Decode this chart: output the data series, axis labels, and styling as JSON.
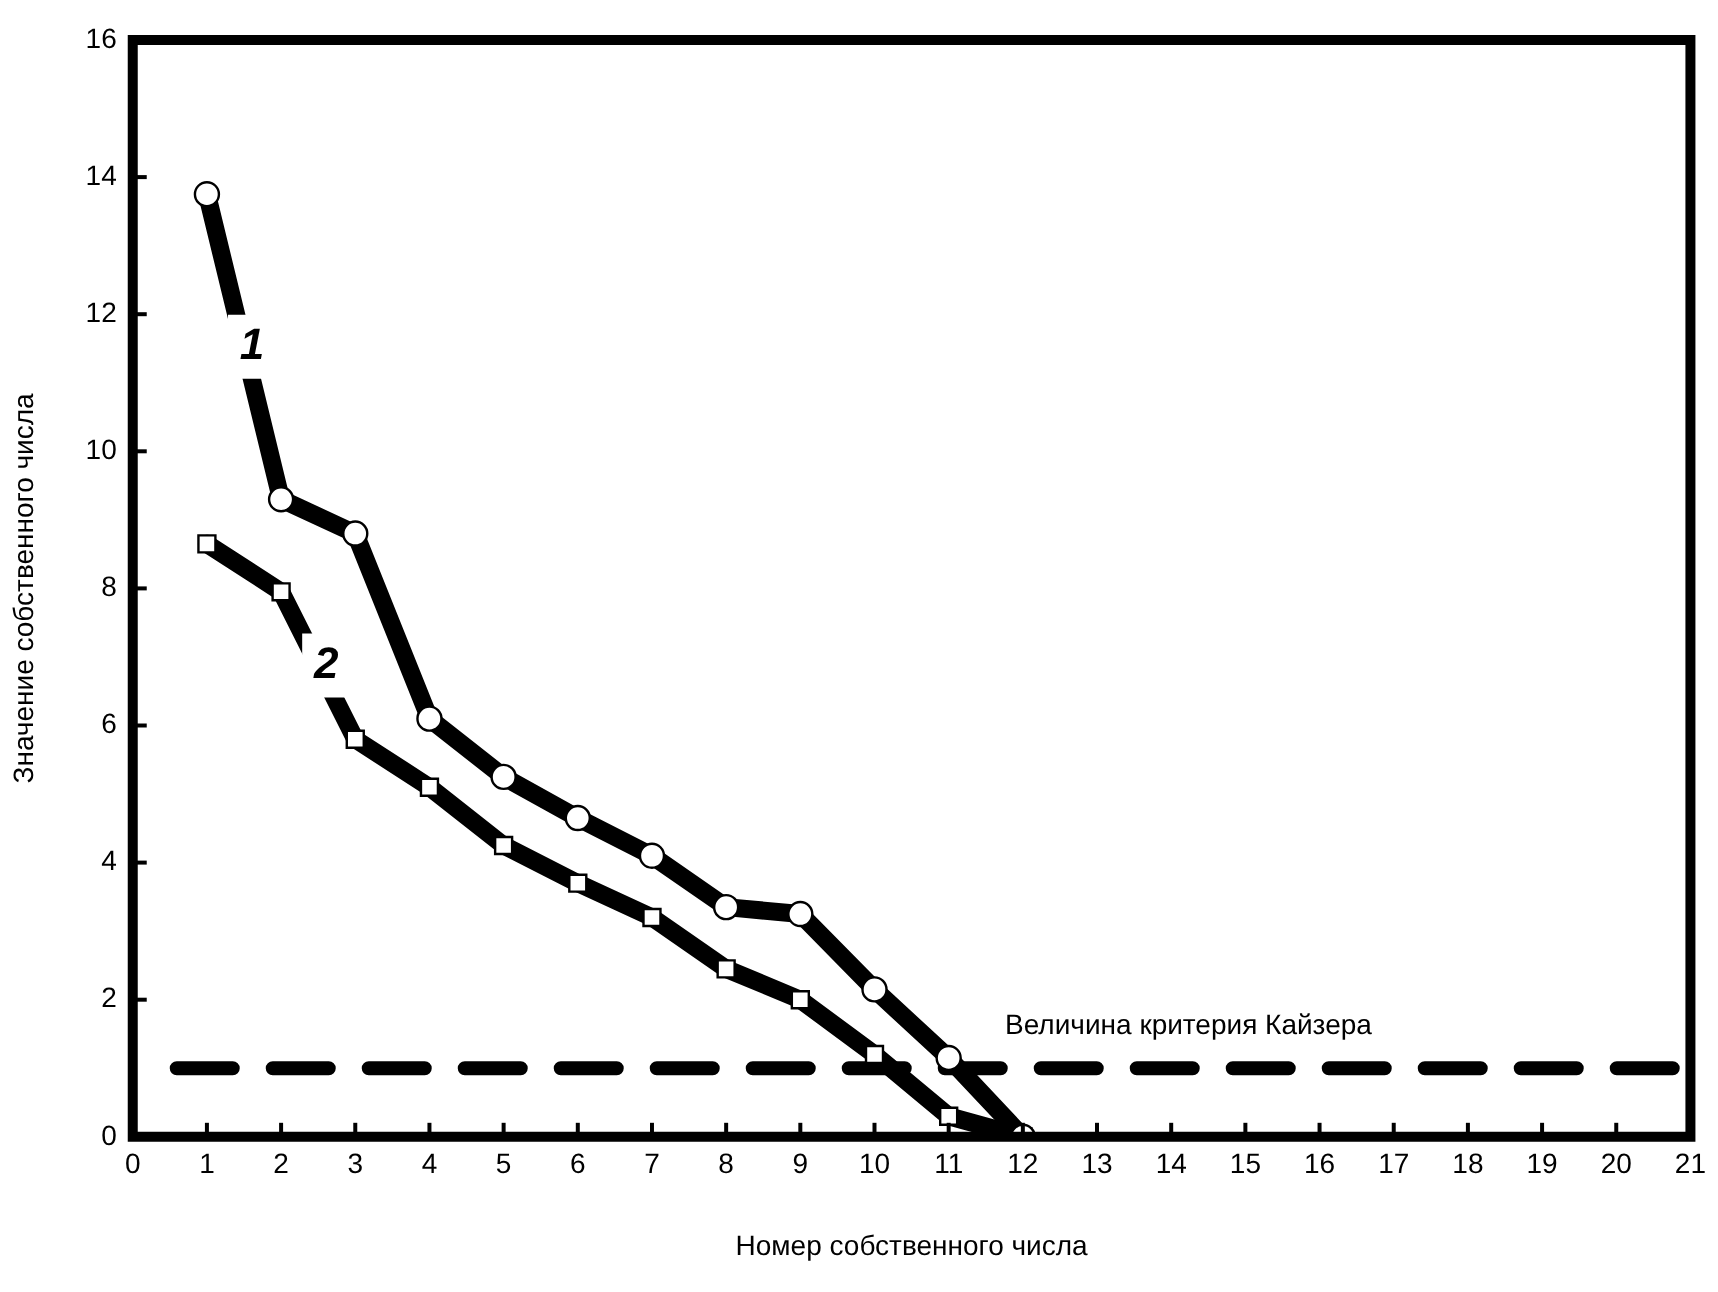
{
  "chart_data": {
    "type": "line",
    "xlabel": "Номер собственного числа",
    "ylabel": "Значение собственного числа",
    "x": [
      1,
      2,
      3,
      4,
      5,
      6,
      7,
      8,
      9,
      10,
      11,
      12
    ],
    "xlim": [
      0,
      21
    ],
    "xticks": [
      0,
      1,
      2,
      3,
      4,
      5,
      6,
      7,
      8,
      9,
      10,
      11,
      12,
      13,
      14,
      15,
      16,
      17,
      18,
      19,
      20,
      21
    ],
    "ylim": [
      0,
      16
    ],
    "yticks": [
      0,
      2,
      4,
      6,
      8,
      10,
      12,
      14,
      16
    ],
    "series": [
      {
        "name": "1",
        "color": "#000000",
        "marker": "circle",
        "values": [
          13.75,
          9.3,
          8.8,
          6.1,
          5.25,
          4.65,
          4.1,
          3.35,
          3.25,
          2.15,
          1.15,
          0
        ]
      },
      {
        "name": "2",
        "color": "#000000",
        "marker": "square",
        "values": [
          8.65,
          7.95,
          5.8,
          5.1,
          4.25,
          3.7,
          3.2,
          2.45,
          2.0,
          1.2,
          0.3,
          0
        ]
      }
    ],
    "ref_lines": [
      {
        "axis": "y",
        "value": 1,
        "label": "Величина критерия Кайзера",
        "color": "#000000",
        "line_style": "dashed"
      }
    ],
    "grid": false,
    "legend": false
  }
}
